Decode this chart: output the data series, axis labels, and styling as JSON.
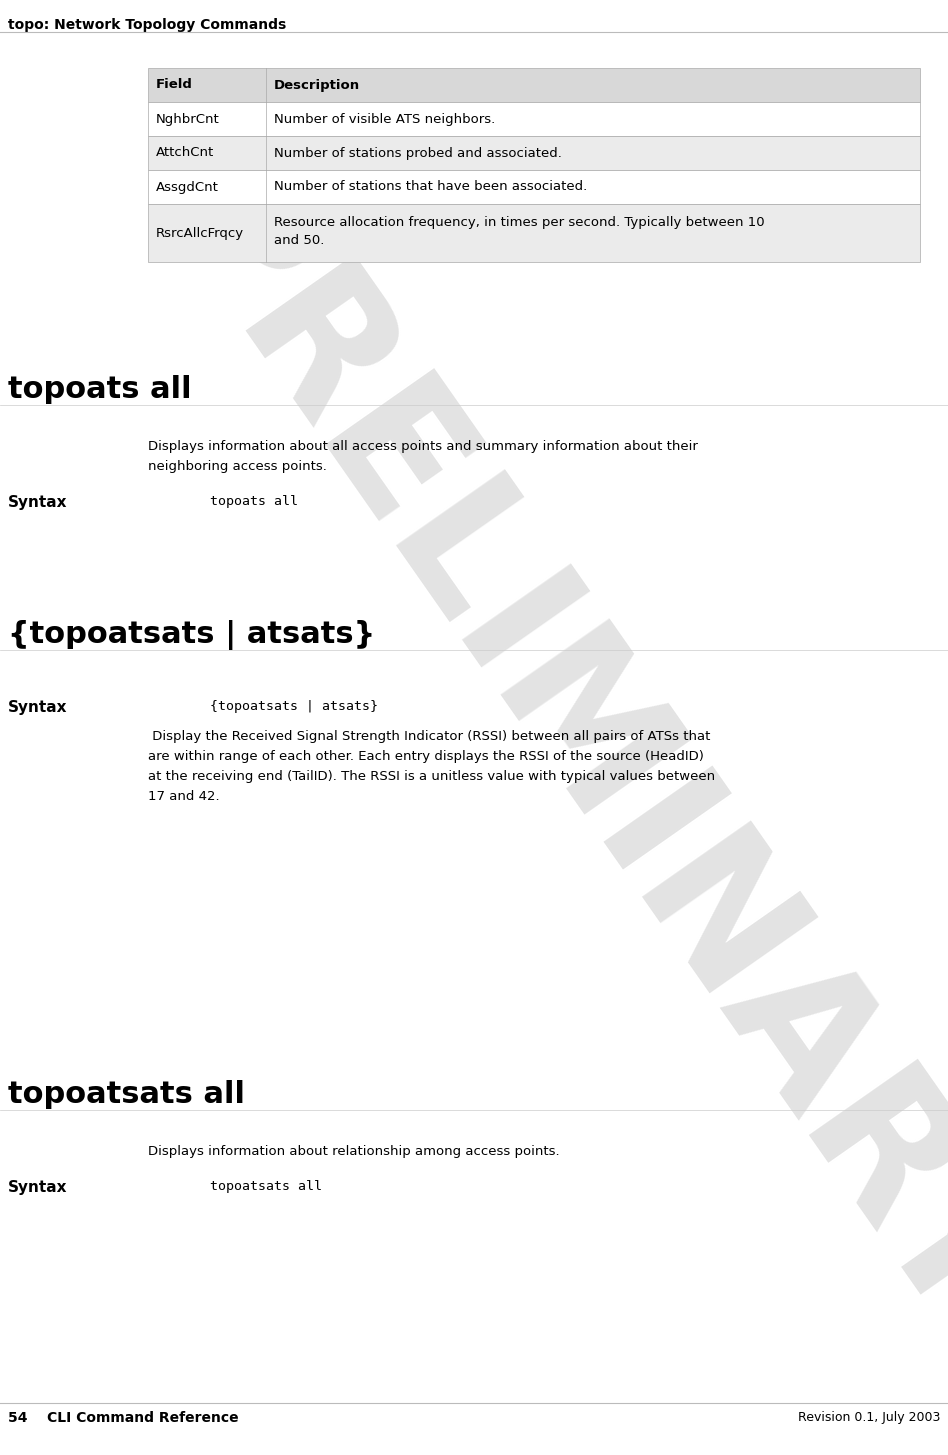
{
  "page_header": "topo: Network Topology Commands",
  "page_footer_left": "54    CLI Command Reference",
  "page_footer_right": "Revision 0.1, July 2003",
  "preliminary_watermark": "PRELIMINARY",
  "bg_color": "#ffffff",
  "table_header_bg": "#d8d8d8",
  "table_row_bg_white": "#ffffff",
  "table_row_bg_gray": "#ebebeb",
  "table_border_color": "#aaaaaa",
  "table_rows": [
    {
      "field": "Field",
      "desc": "Description",
      "header": true
    },
    {
      "field": "NghbrCnt",
      "desc": "Number of visible ATS neighbors.",
      "header": false
    },
    {
      "field": "AttchCnt",
      "desc": "Number of stations probed and associated.",
      "header": false
    },
    {
      "field": "AssgdCnt",
      "desc": "Number of stations that have been associated.",
      "header": false
    },
    {
      "field": "RsrcAllcFrqcy",
      "desc_line1": "Resource allocation frequency, in times per second. Typically between 10",
      "desc_line2": "and 50.",
      "header": false,
      "two_line": true
    }
  ],
  "sections": [
    {
      "title": "topoats all",
      "desc": "Displays information about all access points and summary information about their\nneighboring access points.",
      "syntax_label": "Syntax",
      "syntax_code": "topoats all"
    },
    {
      "title": "{topoatsats | atsats}",
      "desc": " Display the Received Signal Strength Indicator (RSSI) between all pairs of ATSs that\nare within range of each other. Each entry displays the RSSI of the source (HeadID)\nat the receiving end (TailID). The RSSI is a unitless value with typical values between\n17 and 42.",
      "syntax_label": "Syntax",
      "syntax_code": "{topoatsats | atsats}",
      "syntax_before_desc": true
    },
    {
      "title": "topoatsats all",
      "desc": "Displays information about relationship among access points.",
      "syntax_label": "Syntax",
      "syntax_code": "topoatsats all"
    }
  ]
}
